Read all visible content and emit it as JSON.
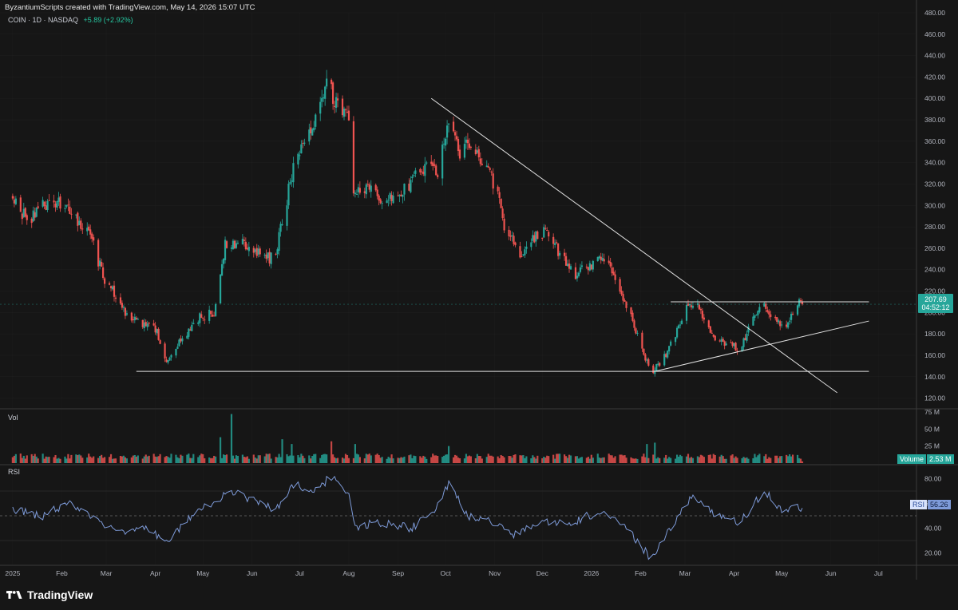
{
  "header": {
    "attribution": "ByzantiumScripts created with TradingView.com, May 14, 2026 15:07 UTC",
    "symbol": "COIN · 1D · NASDAQ",
    "change": "+5.89 (+2.92%)"
  },
  "last_price_badge": {
    "price": "207.69",
    "countdown": "04:52:12"
  },
  "volume_badge": {
    "label": "Volume",
    "value": "2.53 M"
  },
  "rsi_badge": {
    "label": "RSI",
    "value": "56.26"
  },
  "panes": {
    "volume_label": "Vol",
    "rsi_label": "RSI"
  },
  "footer": {
    "brand": "TradingView"
  },
  "colors": {
    "up": "#26a69a",
    "down": "#ef5350",
    "rsi": "#7e9bd9",
    "bg": "#161616",
    "grid": "#2a2a2a"
  },
  "chart_data": [
    {
      "type": "candlestick",
      "title": "",
      "ylim": [
        110,
        480
      ],
      "y_ticks": [
        "480.00",
        "460.00",
        "440.00",
        "420.00",
        "400.00",
        "380.00",
        "360.00",
        "340.00",
        "320.00",
        "300.00",
        "280.00",
        "260.00",
        "240.00",
        "220.00",
        "200.00",
        "180.00",
        "160.00",
        "140.00",
        "120.00"
      ],
      "x_ticks": [
        "2025",
        "Feb",
        "Mar",
        "Apr",
        "May",
        "Jun",
        "Jul",
        "Aug",
        "Sep",
        "Oct",
        "Nov",
        "Dec",
        "2026",
        "Feb",
        "Mar",
        "Apr",
        "May",
        "Jun",
        "Jul"
      ],
      "anchors": [
        [
          "2025-01-01",
          310
        ],
        [
          "2025-01-10",
          285
        ],
        [
          "2025-01-20",
          300
        ],
        [
          "2025-01-28",
          305
        ],
        [
          "2025-02-05",
          295
        ],
        [
          "2025-02-18",
          275
        ],
        [
          "2025-02-28",
          230
        ],
        [
          "2025-03-08",
          215
        ],
        [
          "2025-03-15",
          195
        ],
        [
          "2025-03-25",
          190
        ],
        [
          "2025-04-01",
          185
        ],
        [
          "2025-04-08",
          155
        ],
        [
          "2025-04-18",
          175
        ],
        [
          "2025-04-28",
          195
        ],
        [
          "2025-05-08",
          200
        ],
        [
          "2025-05-15",
          265
        ],
        [
          "2025-05-25",
          265
        ],
        [
          "2025-06-05",
          255
        ],
        [
          "2025-06-15",
          250
        ],
        [
          "2025-06-22",
          300
        ],
        [
          "2025-06-28",
          340
        ],
        [
          "2025-07-05",
          360
        ],
        [
          "2025-07-12",
          380
        ],
        [
          "2025-07-18",
          415
        ],
        [
          "2025-07-25",
          395
        ],
        [
          "2025-08-01",
          385
        ],
        [
          "2025-08-03",
          310
        ],
        [
          "2025-08-10",
          320
        ],
        [
          "2025-08-20",
          305
        ],
        [
          "2025-08-30",
          310
        ],
        [
          "2025-09-08",
          320
        ],
        [
          "2025-09-18",
          335
        ],
        [
          "2025-09-26",
          330
        ],
        [
          "2025-10-03",
          385
        ],
        [
          "2025-10-10",
          350
        ],
        [
          "2025-10-18",
          360
        ],
        [
          "2025-10-25",
          335
        ],
        [
          "2025-11-01",
          320
        ],
        [
          "2025-11-08",
          275
        ],
        [
          "2025-11-18",
          255
        ],
        [
          "2025-11-26",
          270
        ],
        [
          "2025-12-03",
          275
        ],
        [
          "2025-12-12",
          255
        ],
        [
          "2025-12-22",
          235
        ],
        [
          "2025-12-31",
          245
        ],
        [
          "2026-01-10",
          250
        ],
        [
          "2026-01-18",
          225
        ],
        [
          "2026-01-26",
          195
        ],
        [
          "2026-02-03",
          160
        ],
        [
          "2026-02-08",
          145
        ],
        [
          "2026-02-15",
          155
        ],
        [
          "2026-02-22",
          175
        ],
        [
          "2026-03-02",
          205
        ],
        [
          "2026-03-10",
          205
        ],
        [
          "2026-03-20",
          175
        ],
        [
          "2026-03-28",
          170
        ],
        [
          "2026-04-05",
          165
        ],
        [
          "2026-04-13",
          195
        ],
        [
          "2026-04-20",
          210
        ],
        [
          "2026-04-28",
          190
        ],
        [
          "2026-05-05",
          190
        ],
        [
          "2026-05-10",
          210
        ],
        [
          "2026-05-14",
          207.69
        ]
      ],
      "last_price": 207.69,
      "volume": {
        "label": "Vol",
        "ylim": [
          0,
          75
        ],
        "y_ticks": [
          "75 M",
          "50 M",
          "25 M"
        ],
        "spikes": [
          [
            "2025-05-19",
            72
          ],
          [
            "2025-05-12",
            38
          ],
          [
            "2025-06-20",
            35
          ],
          [
            "2025-06-26",
            28
          ],
          [
            "2025-07-21",
            32
          ],
          [
            "2025-08-05",
            28
          ],
          [
            "2025-10-03",
            25
          ],
          [
            "2026-02-05",
            28
          ],
          [
            "2026-02-10",
            30
          ]
        ],
        "last": 2.53
      },
      "rsi": {
        "label": "RSI",
        "ylim": [
          10,
          90
        ],
        "y_ticks": [
          "80.00",
          "60.00",
          "40.00",
          "20.00"
        ],
        "midline": 50,
        "anchors": [
          [
            "2025-01-01",
            55
          ],
          [
            "2025-01-20",
            50
          ],
          [
            "2025-02-05",
            60
          ],
          [
            "2025-02-25",
            45
          ],
          [
            "2025-03-10",
            35
          ],
          [
            "2025-03-25",
            40
          ],
          [
            "2025-04-08",
            30
          ],
          [
            "2025-04-28",
            55
          ],
          [
            "2025-05-20",
            70
          ],
          [
            "2025-06-05",
            60
          ],
          [
            "2025-06-15",
            55
          ],
          [
            "2025-06-28",
            75
          ],
          [
            "2025-07-12",
            70
          ],
          [
            "2025-07-20",
            82
          ],
          [
            "2025-08-01",
            68
          ],
          [
            "2025-08-05",
            40
          ],
          [
            "2025-08-20",
            45
          ],
          [
            "2025-09-10",
            40
          ],
          [
            "2025-09-25",
            55
          ],
          [
            "2025-10-03",
            75
          ],
          [
            "2025-10-15",
            50
          ],
          [
            "2025-11-01",
            45
          ],
          [
            "2025-11-12",
            35
          ],
          [
            "2025-12-01",
            45
          ],
          [
            "2025-12-20",
            45
          ],
          [
            "2026-01-10",
            55
          ],
          [
            "2026-01-26",
            35
          ],
          [
            "2026-02-08",
            15
          ],
          [
            "2026-02-20",
            40
          ],
          [
            "2026-03-05",
            65
          ],
          [
            "2026-03-20",
            50
          ],
          [
            "2026-04-05",
            45
          ],
          [
            "2026-04-20",
            70
          ],
          [
            "2026-05-01",
            55
          ],
          [
            "2026-05-14",
            56.26
          ]
        ],
        "last": 56.26
      },
      "trendlines": [
        {
          "name": "support",
          "points": [
            [
              "2025-03-20",
              145
            ],
            [
              "2026-06-25",
              145
            ]
          ]
        },
        {
          "name": "resistance",
          "points": [
            [
              "2026-02-20",
              210
            ],
            [
              "2026-06-25",
              210
            ]
          ]
        },
        {
          "name": "descending",
          "points": [
            [
              "2025-09-22",
              400
            ],
            [
              "2026-06-05",
              125
            ]
          ]
        },
        {
          "name": "ascending",
          "points": [
            [
              "2026-02-10",
              145
            ],
            [
              "2026-06-25",
              192
            ]
          ]
        }
      ]
    }
  ]
}
